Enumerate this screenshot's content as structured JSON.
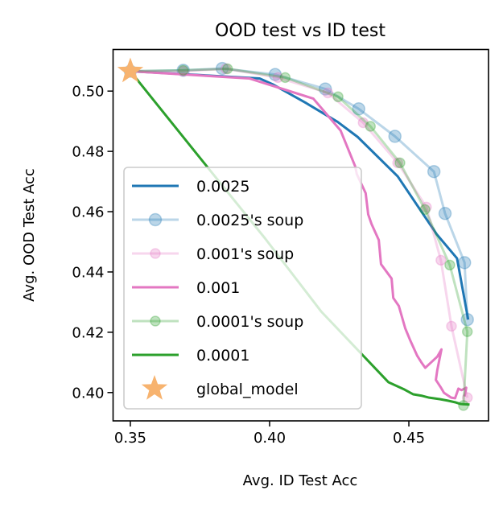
{
  "chart_data": {
    "type": "line",
    "title": "OOD test vs ID test",
    "xlabel": "Avg. ID Test Acc",
    "ylabel": "Avg. OOD Test Acc",
    "xlim": [
      0.3438,
      0.4786
    ],
    "ylim": [
      0.3906,
      0.5138
    ],
    "xticks": [
      0.35,
      0.4,
      0.45
    ],
    "xtick_labels": [
      "0.35",
      "0.40",
      "0.45"
    ],
    "yticks": [
      0.4,
      0.42,
      0.44,
      0.46,
      0.48,
      0.5
    ],
    "ytick_labels": [
      "0.40",
      "0.42",
      "0.44",
      "0.46",
      "0.48",
      "0.50"
    ],
    "grid": false,
    "legend_position": "lower-left",
    "series": [
      {
        "name": "0.0025",
        "color": "#1f77b4",
        "opacity": 1,
        "marker": "none",
        "x": [
          0.35,
          0.3964,
          0.401,
          0.4128,
          0.4244,
          0.4316,
          0.446,
          0.46,
          0.4673,
          0.4713
        ],
        "y": [
          0.5066,
          0.5042,
          0.5023,
          0.4962,
          0.4898,
          0.4848,
          0.4717,
          0.4525,
          0.4445,
          0.4242
        ]
      },
      {
        "name": "0.0025's soup",
        "color": "#1f77b4",
        "opacity": 0.3,
        "marker": "circle-large",
        "x": [
          0.35,
          0.369,
          0.383,
          0.402,
          0.42,
          0.432,
          0.445,
          0.459,
          0.463,
          0.47,
          0.471
        ],
        "y": [
          0.5066,
          0.5069,
          0.5075,
          0.5055,
          0.5007,
          0.4941,
          0.485,
          0.4733,
          0.4594,
          0.4431,
          0.4242
        ]
      },
      {
        "name": "0.001's soup",
        "color": "#e377c2",
        "opacity": 0.3,
        "marker": "circle",
        "x": [
          0.35,
          0.369,
          0.3843,
          0.403,
          0.4209,
          0.4336,
          0.446,
          0.4563,
          0.4615,
          0.4653,
          0.471
        ],
        "y": [
          0.5066,
          0.5066,
          0.5074,
          0.5045,
          0.4994,
          0.4895,
          0.4762,
          0.4615,
          0.4439,
          0.422,
          0.3983
        ]
      },
      {
        "name": "0.001",
        "color": "#e377c2",
        "opacity": 1,
        "marker": "none",
        "x": [
          0.35,
          0.3927,
          0.4157,
          0.4255,
          0.4307,
          0.4313,
          0.4345,
          0.4354,
          0.4366,
          0.4392,
          0.44,
          0.4438,
          0.4444,
          0.4464,
          0.4487,
          0.4504,
          0.453,
          0.4545,
          0.4559,
          0.4602,
          0.4617,
          0.4602,
          0.4597,
          0.4614,
          0.4626,
          0.4652,
          0.4666,
          0.4678,
          0.4689,
          0.4706,
          0.47
        ],
        "y": [
          0.5066,
          0.5042,
          0.4975,
          0.4869,
          0.4751,
          0.4725,
          0.4661,
          0.4591,
          0.4559,
          0.4506,
          0.4426,
          0.4378,
          0.4314,
          0.4287,
          0.4213,
          0.4175,
          0.4122,
          0.41,
          0.4082,
          0.4119,
          0.4143,
          0.4074,
          0.4042,
          0.4018,
          0.3999,
          0.3983,
          0.3981,
          0.4013,
          0.4008,
          0.4016,
          0.3987
        ]
      },
      {
        "name": "0.0001's soup",
        "color": "#2ca02c",
        "opacity": 0.3,
        "marker": "circle",
        "x": [
          0.35,
          0.369,
          0.3849,
          0.4056,
          0.4246,
          0.4362,
          0.4468,
          0.4558,
          0.4647,
          0.471,
          0.4696
        ],
        "y": [
          0.5066,
          0.5069,
          0.5074,
          0.5045,
          0.4981,
          0.4883,
          0.4762,
          0.4607,
          0.4423,
          0.4202,
          0.3957
        ]
      },
      {
        "name": "0.0001",
        "color": "#2ca02c",
        "opacity": 1,
        "marker": "none",
        "x": [
          0.35,
          0.3739,
          0.3984,
          0.4186,
          0.4427,
          0.4484,
          0.4516,
          0.4548,
          0.4573,
          0.4611,
          0.464,
          0.4669,
          0.4686,
          0.4718
        ],
        "y": [
          0.5066,
          0.4791,
          0.4511,
          0.4268,
          0.4034,
          0.401,
          0.3994,
          0.3989,
          0.3983,
          0.3978,
          0.3973,
          0.3967,
          0.3962,
          0.396
        ]
      }
    ],
    "global_model": {
      "name": "global_model",
      "color": "#f7b36f",
      "marker": "star",
      "x": 0.35,
      "y": 0.5066
    }
  }
}
